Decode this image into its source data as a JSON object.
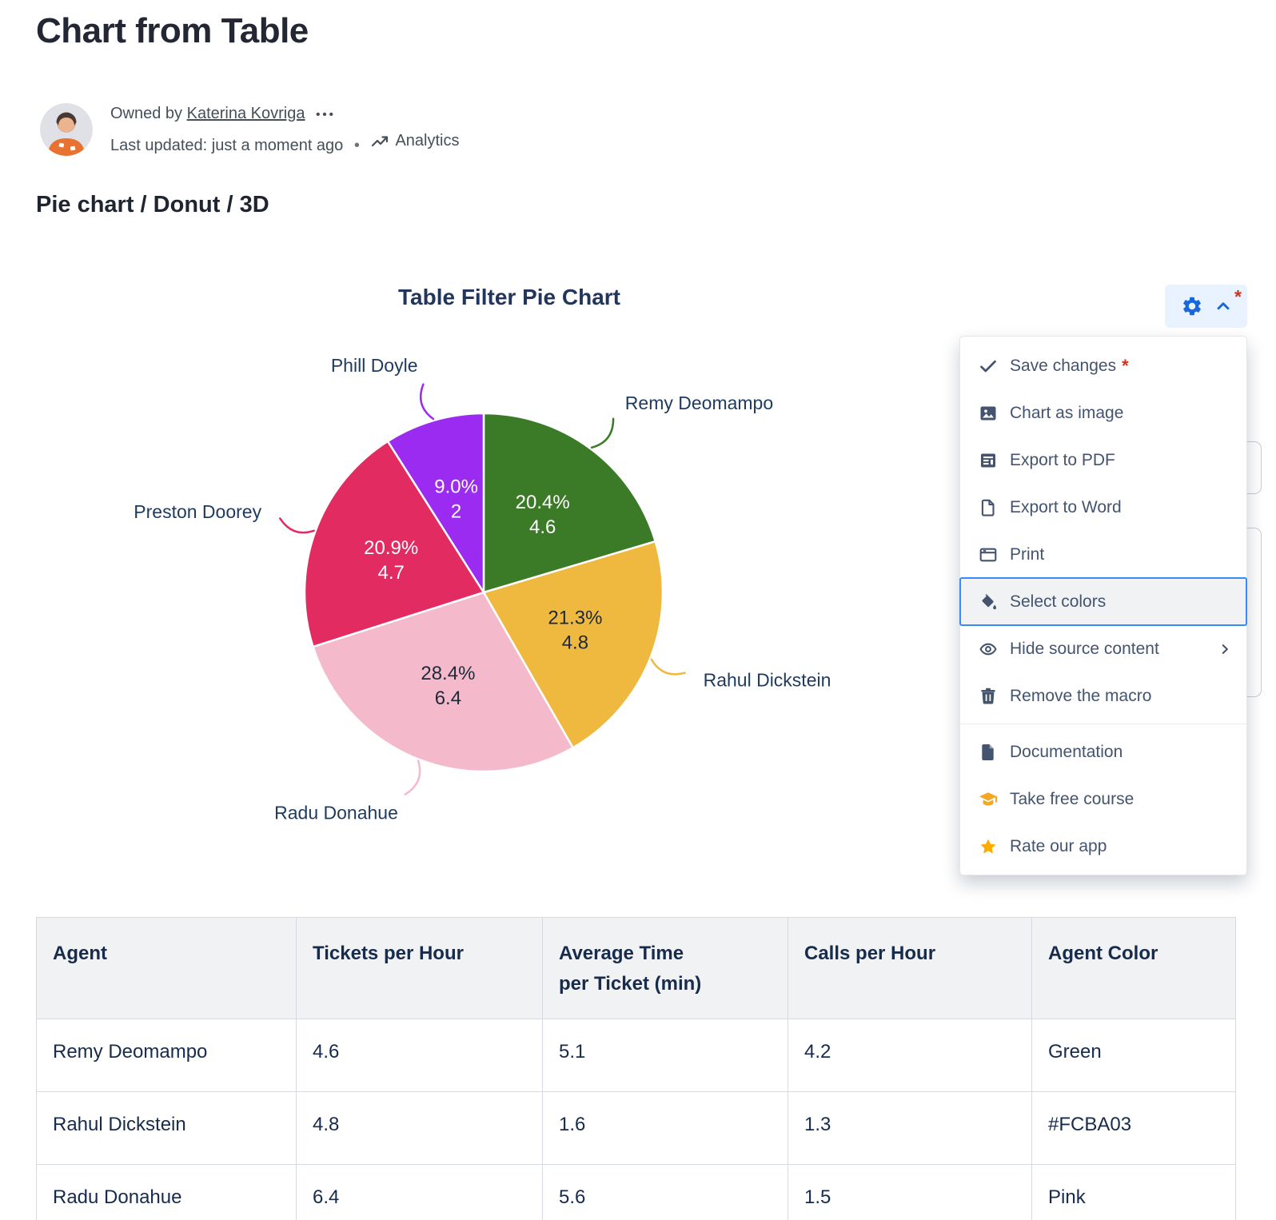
{
  "page": {
    "title": "Chart from Table",
    "owned_by_prefix": "Owned by",
    "owner": "Katerina Kovriga",
    "more_dots": "•••",
    "last_updated": "Last updated: just a moment ago",
    "meta_separator": "•",
    "analytics_label": "Analytics",
    "section_heading": "Pie chart / Donut / 3D"
  },
  "controls": {
    "unsaved_marker": "*"
  },
  "chart_data": {
    "type": "pie",
    "title": "Table Filter Pie Chart",
    "start_angle_deg": 0,
    "direction": "clockwise",
    "labels_position": "outside-with-leader-lines",
    "slices": [
      {
        "label": "Remy Deomampo",
        "percent": 20.4,
        "value": 4.6,
        "percent_text": "20.4%",
        "value_text": "4.6",
        "color": "#3B7A27",
        "text_color": "#FFFFFF"
      },
      {
        "label": "Rahul Dickstein",
        "percent": 21.3,
        "value": 4.8,
        "percent_text": "21.3%",
        "value_text": "4.8",
        "color": "#EFB93F",
        "text_color": "#1D2939"
      },
      {
        "label": "Radu Donahue",
        "percent": 28.4,
        "value": 6.4,
        "percent_text": "28.4%",
        "value_text": "6.4",
        "color": "#F4BACB",
        "text_color": "#1D2939"
      },
      {
        "label": "Preston Doorey",
        "percent": 20.9,
        "value": 4.7,
        "percent_text": "20.9%",
        "value_text": "4.7",
        "color": "#E22B61",
        "text_color": "#FFFFFF"
      },
      {
        "label": "Phill Doyle",
        "percent": 9.0,
        "value": 2,
        "percent_text": "9.0%",
        "value_text": "2",
        "color": "#9C2BF1",
        "text_color": "#FFFFFF"
      }
    ]
  },
  "menu": {
    "items": [
      {
        "label": "Save changes",
        "icon": "check",
        "suffix": "*",
        "group": 1
      },
      {
        "label": "Chart as image",
        "icon": "image",
        "group": 1
      },
      {
        "label": "Export to PDF",
        "icon": "pdf",
        "group": 1
      },
      {
        "label": "Export to Word",
        "icon": "word",
        "group": 1
      },
      {
        "label": "Print",
        "icon": "print",
        "group": 1
      },
      {
        "label": "Select colors",
        "icon": "paint",
        "selected": true,
        "group": 1
      },
      {
        "label": "Hide source content",
        "icon": "eye",
        "submenu": true,
        "group": 1
      },
      {
        "label": "Remove the macro",
        "icon": "trash",
        "group": 1
      },
      {
        "label": "Documentation",
        "icon": "doc",
        "group": 2
      },
      {
        "label": "Take free course",
        "icon": "gradcap",
        "icon_color": "#F5A623",
        "group": 2
      },
      {
        "label": "Rate our app",
        "icon": "star",
        "icon_color": "#FFAB00",
        "group": 2
      }
    ]
  },
  "table": {
    "headers": [
      "Agent",
      "Tickets per Hour",
      "Average Time per Ticket (min)",
      "Calls per Hour",
      "Agent Color"
    ],
    "rows": [
      [
        "Remy Deomampo",
        "4.6",
        "5.1",
        "4.2",
        "Green"
      ],
      [
        "Rahul Dickstein",
        "4.8",
        "1.6",
        "1.3",
        "#FCBA03"
      ],
      [
        "Radu Donahue",
        "6.4",
        "5.6",
        "1.5",
        "Pink"
      ]
    ]
  }
}
